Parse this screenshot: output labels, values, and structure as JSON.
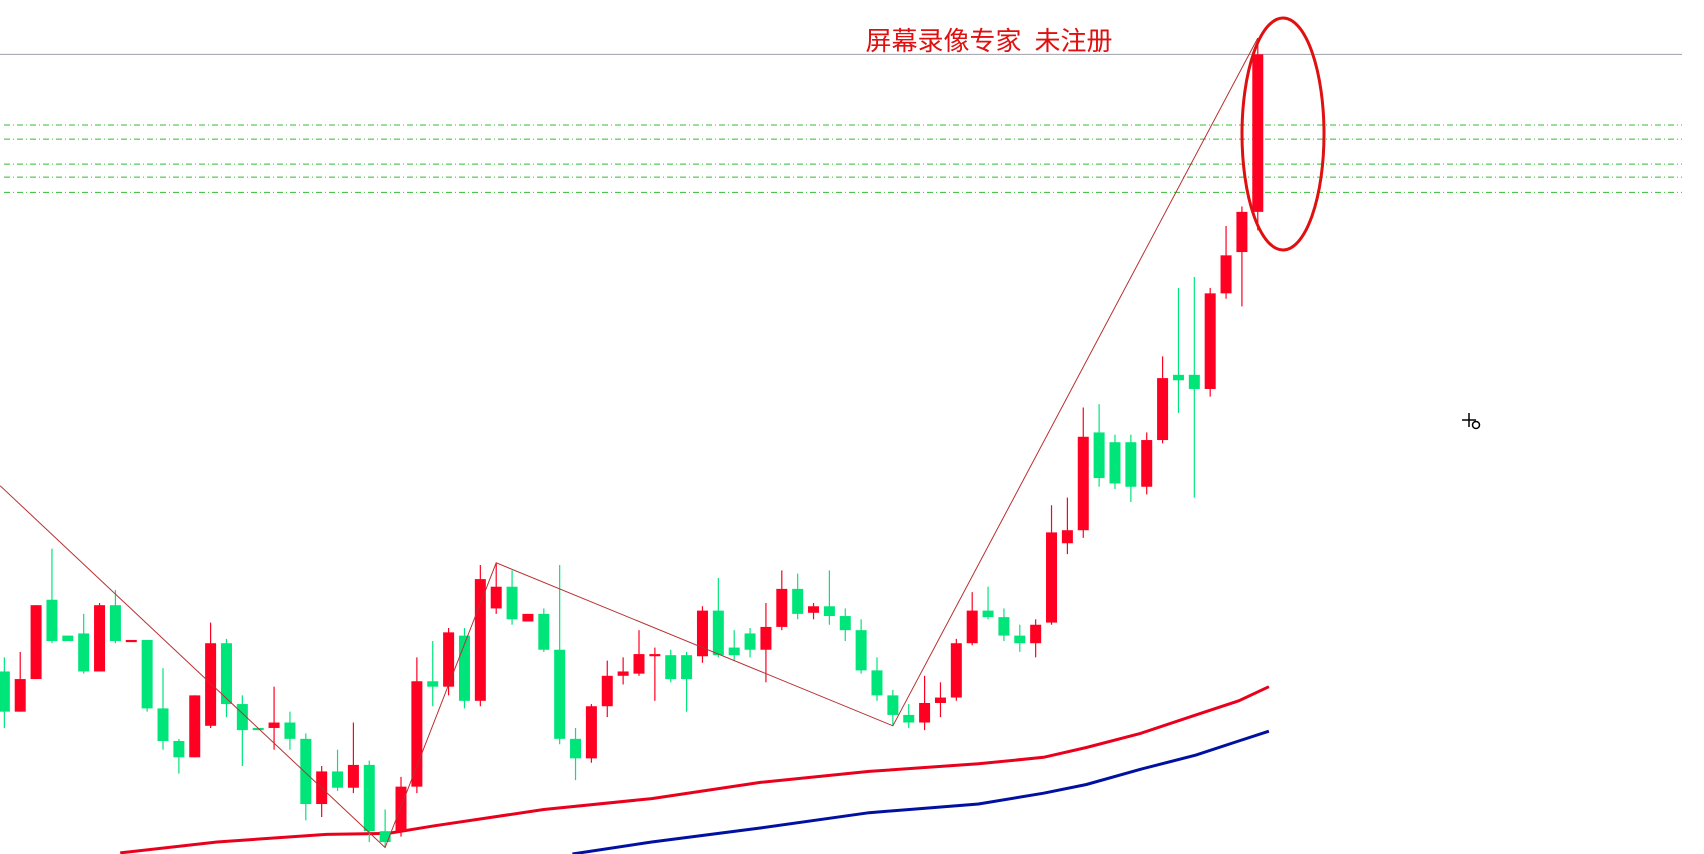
{
  "chart_data": {
    "type": "candlestick",
    "watermark": "屏幕录像专家  未注册",
    "ylim": [
      0,
      786
    ],
    "up_color": "#ff0022",
    "down_color": "#00e57a",
    "open": [
      168,
      131,
      161,
      234,
      201,
      203,
      168,
      229,
      195,
      197,
      134,
      104,
      89,
      118,
      194,
      138,
      116,
      116,
      121,
      106,
      46,
      76,
      61,
      82,
      21,
      21,
      62,
      159,
      154,
      201,
      141,
      226,
      246,
      214,
      221,
      188,
      106,
      88,
      136,
      164,
      166,
      182,
      183,
      183,
      182,
      224,
      190,
      203,
      188,
      209,
      244,
      222,
      228,
      219,
      206,
      169,
      146,
      128,
      121,
      139,
      144,
      194,
      224,
      218,
      201,
      194,
      213,
      286,
      298,
      388,
      379,
      379,
      338,
      381,
      441,
      441,
      428,
      516,
      554,
      591
    ],
    "high": [
      181,
      186,
      229,
      281,
      201,
      221,
      231,
      243,
      197,
      197,
      171,
      106,
      146,
      213,
      198,
      146,
      116,
      154,
      131,
      111,
      81,
      96,
      121,
      86,
      41,
      71,
      181,
      196,
      208,
      208,
      266,
      268,
      261,
      221,
      226,
      266,
      116,
      138,
      178,
      181,
      206,
      190,
      188,
      186,
      228,
      254,
      206,
      208,
      231,
      261,
      258,
      231,
      261,
      226,
      216,
      181,
      151,
      138,
      164,
      158,
      198,
      241,
      246,
      226,
      211,
      216,
      321,
      328,
      411,
      414,
      386,
      386,
      388,
      458,
      521,
      531,
      521,
      578,
      596,
      751
    ],
    "low": [
      116,
      131,
      161,
      194,
      196,
      166,
      168,
      194,
      195,
      131,
      96,
      74,
      89,
      116,
      126,
      81,
      114,
      96,
      96,
      31,
      34,
      58,
      56,
      11,
      6,
      16,
      56,
      136,
      146,
      134,
      136,
      221,
      211,
      214,
      186,
      101,
      68,
      84,
      126,
      156,
      164,
      141,
      158,
      131,
      176,
      181,
      178,
      181,
      158,
      206,
      216,
      216,
      211,
      196,
      166,
      141,
      118,
      116,
      114,
      126,
      141,
      192,
      216,
      196,
      186,
      181,
      211,
      276,
      291,
      338,
      336,
      324,
      331,
      378,
      406,
      328,
      421,
      511,
      504,
      574
    ],
    "close": [
      131,
      161,
      229,
      196,
      196,
      168,
      229,
      196,
      197,
      134,
      104,
      89,
      146,
      194,
      138,
      114,
      114,
      121,
      106,
      46,
      76,
      61,
      82,
      21,
      11,
      62,
      159,
      154,
      204,
      141,
      253,
      246,
      216,
      221,
      188,
      106,
      88,
      136,
      164,
      168,
      184,
      184,
      161,
      161,
      224,
      183,
      183,
      188,
      209,
      244,
      221,
      228,
      219,
      206,
      169,
      146,
      128,
      121,
      139,
      144,
      194,
      224,
      218,
      201,
      194,
      211,
      296,
      298,
      384,
      346,
      341,
      338,
      381,
      438,
      436,
      428,
      516,
      551,
      591,
      736
    ],
    "zigzag": {
      "color": "#b83030",
      "x": [
        -0.27,
        24,
        31,
        56,
        79
      ],
      "values": [
        339,
        6,
        268,
        118,
        751
      ]
    },
    "moving_averages": [
      {
        "color": "#e8001c",
        "x": [
          7.3,
          13.4,
          20.3,
          24.2,
          27.1,
          34,
          40.8,
          47.7,
          54.5,
          61.4,
          65.5,
          68.2,
          71.6,
          75.1,
          77.8,
          79.7
        ],
        "values": [
          1,
          11,
          18,
          19,
          26,
          41,
          51,
          66,
          76,
          83,
          89,
          98,
          111,
          128,
          141,
          154
        ]
      },
      {
        "color": "#0010a0",
        "x": [
          35.8,
          40.8,
          47.7,
          54.5,
          61.4,
          65.5,
          68.2,
          71.6,
          75.1,
          77.8,
          79.7
        ],
        "values": [
          0,
          11,
          24,
          38,
          46,
          56,
          64,
          78,
          91,
          104,
          113
        ]
      }
    ],
    "last_price_line": {
      "color": "#a0a0a8",
      "value": 736
    },
    "levels": {
      "color": "#33bb33",
      "values": [
        671,
        658,
        635,
        623,
        609
      ]
    }
  }
}
